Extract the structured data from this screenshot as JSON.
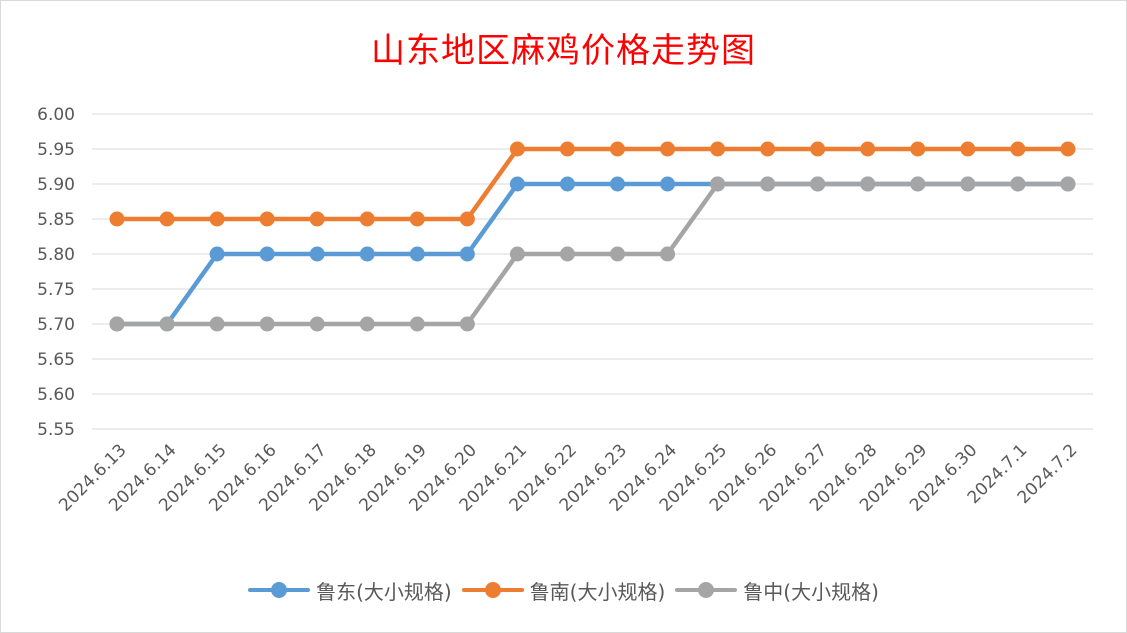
{
  "chart_data": {
    "type": "line",
    "title": "山东地区麻鸡价格走势图",
    "xlabel": "",
    "ylabel": "",
    "ylim": [
      5.55,
      6.0
    ],
    "ytick_labels": [
      "6.00",
      "5.95",
      "5.90",
      "5.85",
      "5.80",
      "5.75",
      "5.70",
      "5.65",
      "5.60",
      "5.55"
    ],
    "yticks": [
      6.0,
      5.95,
      5.9,
      5.85,
      5.8,
      5.75,
      5.7,
      5.65,
      5.6,
      5.55
    ],
    "grid": true,
    "legend_position": "bottom",
    "categories": [
      "2024.6.13",
      "2024.6.14",
      "2024.6.15",
      "2024.6.16",
      "2024.6.17",
      "2024.6.18",
      "2024.6.19",
      "2024.6.20",
      "2024.6.21",
      "2024.6.22",
      "2024.6.23",
      "2024.6.24",
      "2024.6.25",
      "2024.6.26",
      "2024.6.27",
      "2024.6.28",
      "2024.6.29",
      "2024.6.30",
      "2024.7.1",
      "2024.7.2"
    ],
    "series": [
      {
        "name": "鲁东(大小规格)",
        "color": "#5b9bd5",
        "values": [
          5.7,
          5.7,
          5.8,
          5.8,
          5.8,
          5.8,
          5.8,
          5.8,
          5.9,
          5.9,
          5.9,
          5.9,
          5.9,
          5.9,
          5.9,
          5.9,
          5.9,
          5.9,
          5.9,
          5.9
        ]
      },
      {
        "name": "鲁南(大小规格)",
        "color": "#ed7d31",
        "values": [
          5.85,
          5.85,
          5.85,
          5.85,
          5.85,
          5.85,
          5.85,
          5.85,
          5.95,
          5.95,
          5.95,
          5.95,
          5.95,
          5.95,
          5.95,
          5.95,
          5.95,
          5.95,
          5.95,
          5.95
        ]
      },
      {
        "name": "鲁中(大小规格)",
        "color": "#a5a5a5",
        "values": [
          5.7,
          5.7,
          5.7,
          5.7,
          5.7,
          5.7,
          5.7,
          5.7,
          5.8,
          5.8,
          5.8,
          5.8,
          5.9,
          5.9,
          5.9,
          5.9,
          5.9,
          5.9,
          5.9,
          5.9
        ]
      }
    ]
  }
}
